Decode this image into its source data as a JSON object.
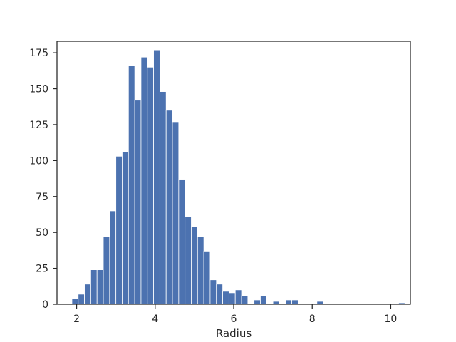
{
  "chart_data": {
    "type": "bar",
    "subtype": "histogram",
    "xlabel": "Radius",
    "ylabel": "",
    "title": "",
    "xlim": [
      1.5,
      10.5
    ],
    "ylim": [
      0,
      183
    ],
    "xticks": [
      2,
      4,
      6,
      8,
      10
    ],
    "yticks": [
      0,
      25,
      50,
      75,
      100,
      125,
      150,
      175
    ],
    "bin_width": 0.16,
    "bin_start": 1.88,
    "counts": [
      4,
      7,
      14,
      24,
      24,
      47,
      65,
      103,
      106,
      166,
      142,
      172,
      165,
      177,
      148,
      135,
      127,
      87,
      61,
      54,
      47,
      37,
      17,
      14,
      9,
      8,
      10,
      6,
      0,
      3,
      6,
      0,
      2,
      0,
      3,
      3,
      0,
      0,
      0,
      2,
      0,
      0,
      0,
      0,
      0,
      0,
      0,
      0,
      0,
      0,
      0,
      0,
      1
    ],
    "bar_color": "#4c72b0",
    "grid": false
  }
}
